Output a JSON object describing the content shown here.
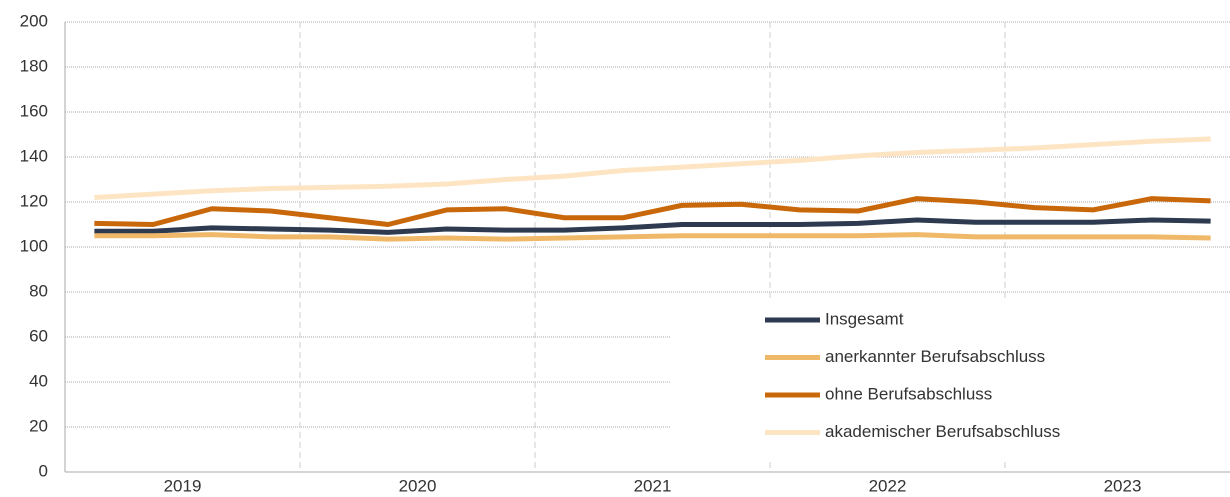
{
  "chart_data": {
    "type": "line",
    "year_labels": [
      "2019",
      "2020",
      "2021",
      "2022",
      "2023"
    ],
    "categories": [
      null,
      null,
      null,
      null,
      null,
      null,
      null,
      null,
      null,
      null,
      null,
      null,
      null,
      null,
      null,
      null,
      null,
      null,
      null,
      null
    ],
    "series": [
      {
        "name": "Insgesamt",
        "color": "#2e3a4f",
        "values": [
          107,
          107,
          108.5,
          108,
          107.5,
          106.5,
          108,
          107.5,
          107.5,
          108.5,
          110,
          110,
          110,
          110.5,
          112,
          111,
          111,
          111,
          112,
          111.5
        ]
      },
      {
        "name": "anerkannter Berufsabschluss",
        "color": "#f0b96a",
        "values": [
          105,
          105,
          105.5,
          104.5,
          104.5,
          103.5,
          104,
          103.5,
          104,
          104.5,
          105,
          105,
          105,
          105,
          105.5,
          104.5,
          104.5,
          104.5,
          104.5,
          104
        ]
      },
      {
        "name": "ohne Berufsabschluss",
        "color": "#c8680a",
        "values": [
          110.5,
          110,
          117,
          116,
          113,
          110,
          116.5,
          117,
          113,
          113,
          118.5,
          119,
          116.5,
          116,
          121.5,
          120,
          117.5,
          116.5,
          121.5,
          120.5
        ]
      },
      {
        "name": "akademischer Berufsabschluss",
        "color": "#fde5c4",
        "values": [
          122,
          123.5,
          125,
          126,
          126.5,
          127,
          128,
          130,
          131.5,
          134,
          135.5,
          137,
          138.5,
          140.5,
          142,
          143,
          144,
          145.5,
          147,
          148
        ]
      }
    ],
    "ylim": [
      0,
      200
    ],
    "yticks": [
      0,
      20,
      40,
      60,
      80,
      100,
      120,
      140,
      160,
      180,
      200
    ],
    "grid": true
  }
}
